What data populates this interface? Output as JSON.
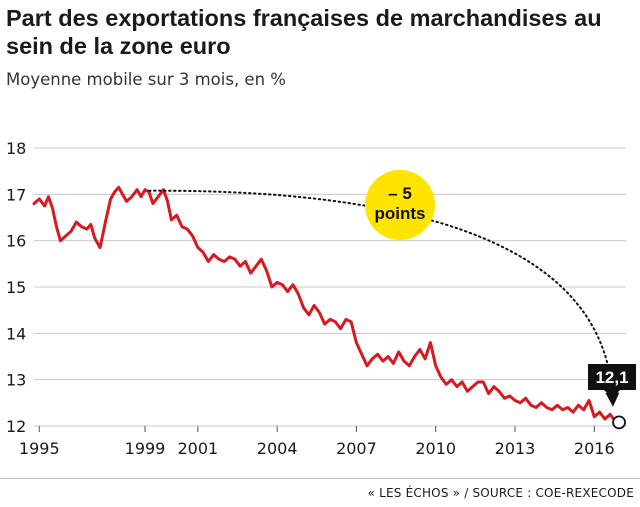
{
  "header": {
    "title": "Part des exportations françaises de marchandises au sein de la zone euro",
    "subtitle": "Moyenne mobile sur 3 mois, en %"
  },
  "footer": {
    "source": "« LES ÉCHOS » / SOURCE : COE-REXECODE"
  },
  "colors": {
    "series": "#d71920",
    "callout": "#ffe400",
    "grid": "#c8c8c8",
    "label_box": "#111111"
  },
  "chart_data": {
    "type": "line",
    "title": "Part des exportations françaises de marchandises au sein de la zone euro",
    "subtitle": "Moyenne mobile sur 3 mois, en %",
    "xlabel": "",
    "ylabel": "",
    "ylim": [
      12,
      18
    ],
    "xlim": [
      1994.8,
      2017.2
    ],
    "y_ticks": [
      "18",
      "17",
      "16",
      "15",
      "14",
      "13",
      "12"
    ],
    "x_ticks": [
      "1995",
      "1999",
      "2001",
      "2004",
      "2007",
      "2010",
      "2013",
      "2016"
    ],
    "grid": "horizontal",
    "series": [
      {
        "x": [
          1994.8,
          1995.0,
          1995.2,
          1995.35,
          1995.5,
          1995.65,
          1995.8,
          1996.0,
          1996.2,
          1996.4,
          1996.6,
          1996.8,
          1996.95,
          1997.1,
          1997.3,
          1997.5,
          1997.7,
          1997.85,
          1998.0,
          1998.15,
          1998.3,
          1998.5,
          1998.7,
          1998.85,
          1999.0,
          1999.15,
          1999.3,
          1999.5,
          1999.7,
          1999.85,
          2000.0,
          2000.2,
          2000.4,
          2000.6,
          2000.8,
          2001.0,
          2001.2,
          2001.4,
          2001.6,
          2001.8,
          2002.0,
          2002.2,
          2002.4,
          2002.6,
          2002.8,
          2003.0,
          2003.2,
          2003.4,
          2003.6,
          2003.8,
          2004.0,
          2004.2,
          2004.4,
          2004.6,
          2004.8,
          2005.0,
          2005.2,
          2005.4,
          2005.6,
          2005.8,
          2006.0,
          2006.2,
          2006.4,
          2006.6,
          2006.8,
          2007.0,
          2007.2,
          2007.4,
          2007.6,
          2007.8,
          2008.0,
          2008.2,
          2008.4,
          2008.6,
          2008.8,
          2009.0,
          2009.2,
          2009.4,
          2009.6,
          2009.8,
          2010.0,
          2010.2,
          2010.4,
          2010.6,
          2010.8,
          2011.0,
          2011.2,
          2011.4,
          2011.6,
          2011.8,
          2012.0,
          2012.2,
          2012.4,
          2012.6,
          2012.8,
          2013.0,
          2013.2,
          2013.4,
          2013.6,
          2013.8,
          2014.0,
          2014.2,
          2014.4,
          2014.6,
          2014.8,
          2015.0,
          2015.2,
          2015.4,
          2015.6,
          2015.8,
          2016.0,
          2016.2,
          2016.4,
          2016.6,
          2016.8
        ],
        "y": [
          16.8,
          16.9,
          16.75,
          16.95,
          16.7,
          16.3,
          16.0,
          16.1,
          16.2,
          16.4,
          16.3,
          16.25,
          16.35,
          16.05,
          15.85,
          16.4,
          16.9,
          17.05,
          17.15,
          17.0,
          16.85,
          16.95,
          17.1,
          16.95,
          17.1,
          17.05,
          16.8,
          16.95,
          17.1,
          16.85,
          16.45,
          16.55,
          16.3,
          16.25,
          16.1,
          15.85,
          15.75,
          15.55,
          15.7,
          15.6,
          15.55,
          15.65,
          15.6,
          15.45,
          15.55,
          15.3,
          15.45,
          15.6,
          15.35,
          15.0,
          15.1,
          15.05,
          14.9,
          15.05,
          14.85,
          14.55,
          14.4,
          14.6,
          14.45,
          14.2,
          14.3,
          14.25,
          14.1,
          14.3,
          14.25,
          13.8,
          13.55,
          13.3,
          13.45,
          13.55,
          13.4,
          13.5,
          13.35,
          13.6,
          13.4,
          13.3,
          13.5,
          13.65,
          13.45,
          13.8,
          13.3,
          13.05,
          12.9,
          13.0,
          12.85,
          12.95,
          12.75,
          12.85,
          12.95,
          12.95,
          12.7,
          12.85,
          12.75,
          12.6,
          12.65,
          12.55,
          12.5,
          12.6,
          12.45,
          12.4,
          12.5,
          12.4,
          12.35,
          12.45,
          12.35,
          12.4,
          12.3,
          12.45,
          12.35,
          12.55,
          12.2,
          12.3,
          12.15,
          12.25,
          12.1
        ]
      }
    ],
    "annotations": {
      "change_line1": "– 5",
      "change_line2": "points",
      "last_value": "12,1",
      "arrow_from": {
        "x": 1999.0,
        "y": 17.1
      },
      "arrow_to": {
        "x": 2016.7,
        "y": 12.45
      },
      "last_point": {
        "x": 2016.9,
        "y": 12.1
      }
    }
  }
}
